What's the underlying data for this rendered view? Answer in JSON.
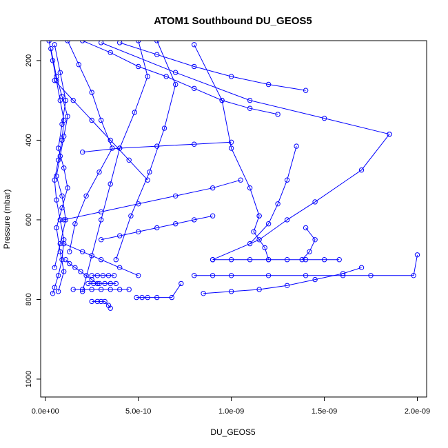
{
  "chart_data": {
    "type": "line",
    "title": "ATOM1 Southbound DU_GEOS5",
    "xlabel": "DU_GEOS5",
    "ylabel": "Pressure (mbar)",
    "xlim": [
      -2.5e-11,
      2.05e-09
    ],
    "ylim": [
      1045,
      150
    ],
    "y_reversed": true,
    "grid": false,
    "legend": "none",
    "x_ticks": [
      0,
      5e-10,
      1e-09,
      1.5e-09,
      2e-09
    ],
    "x_tick_labels": [
      "0.0e+00",
      "5.0e-10",
      "1.0e-09",
      "1.5e-09",
      "2.0e-09"
    ],
    "y_ticks": [
      200,
      400,
      600,
      800,
      1000
    ],
    "y_tick_labels": [
      "200",
      "400",
      "600",
      "800",
      "1000"
    ],
    "color": "#0000ff",
    "marker": "open-circle",
    "series": [
      {
        "values_x": [
          2e-11,
          4e-11,
          6e-11,
          8e-11,
          1e-10,
          9e-11,
          7e-11,
          5e-11,
          6e-11,
          8e-11,
          1e-10,
          9e-11,
          7e-11,
          5e-11,
          4e-11
        ],
        "values_y": [
          150,
          200,
          250,
          300,
          350,
          400,
          450,
          500,
          550,
          600,
          650,
          700,
          740,
          770,
          785
        ]
      },
      {
        "values_x": [
          5e-11,
          8e-11,
          1.1e-10,
          9e-11,
          7e-11,
          1e-10,
          1.2e-10,
          9e-11,
          6e-11,
          8e-11,
          1e-10,
          7e-11
        ],
        "values_y": [
          160,
          230,
          300,
          360,
          420,
          470,
          520,
          570,
          620,
          680,
          730,
          780
        ]
      },
      {
        "values_x": [
          3e-11,
          6e-11,
          9e-11,
          1.2e-10,
          1e-10,
          8e-11,
          6e-11,
          9e-11,
          1.1e-10,
          8e-11,
          5e-11
        ],
        "values_y": [
          170,
          240,
          290,
          340,
          390,
          440,
          490,
          540,
          600,
          660,
          720
        ]
      },
      {
        "values_x": [
          1.2e-10,
          1.8e-10,
          2.5e-10,
          3e-10,
          3.6e-10,
          2.9e-10,
          2.2e-10,
          1.6e-10,
          1.3e-10
        ],
        "values_y": [
          150,
          210,
          280,
          350,
          420,
          480,
          540,
          610,
          680
        ]
      },
      {
        "values_x": [
          2e-10,
          3.5e-10,
          5e-10,
          6.5e-10,
          8e-10,
          9.5e-10,
          1.1e-09,
          1.25e-09
        ],
        "values_y": [
          150,
          180,
          215,
          240,
          270,
          300,
          320,
          335
        ]
      },
      {
        "values_x": [
          4e-10,
          6e-10,
          8e-10,
          1e-09,
          1.2e-09,
          1.4e-09
        ],
        "values_y": [
          155,
          185,
          215,
          240,
          260,
          275
        ]
      },
      {
        "values_x": [
          3e-10,
          7e-10,
          1.1e-09,
          1.5e-09,
          1.85e-09
        ],
        "values_y": [
          155,
          230,
          300,
          345,
          385
        ]
      },
      {
        "values_x": [
          1.85e-09,
          1.7e-09,
          1.45e-09,
          1.3e-09,
          1.15e-09,
          9e-10
        ],
        "values_y": [
          385,
          475,
          555,
          600,
          650,
          700
        ]
      },
      {
        "values_x": [
          9e-10,
          1e-09,
          1.1e-09,
          1.2e-09,
          1.3e-09,
          1.4e-09,
          1.5e-09,
          1.58e-09
        ],
        "values_y": [
          700,
          700,
          700,
          700,
          700,
          700,
          700,
          700
        ]
      },
      {
        "values_x": [
          8e-10,
          9e-10,
          1e-09,
          1.2e-09,
          1.4e-09,
          1.6e-09,
          1.75e-09,
          1.98e-09,
          2e-09
        ],
        "values_y": [
          740,
          740,
          740,
          740,
          740,
          740,
          740,
          740,
          688
        ]
      },
      {
        "values_x": [
          8.5e-10,
          1e-09,
          1.15e-09,
          1.3e-09,
          1.45e-09,
          1.6e-09,
          1.7e-09
        ],
        "values_y": [
          785,
          780,
          775,
          765,
          750,
          735,
          720
        ]
      },
      {
        "values_x": [
          2.5e-10,
          2.8e-10,
          3e-10,
          3.2e-10,
          3.4e-10,
          3.5e-10
        ],
        "values_y": [
          805,
          805,
          805,
          805,
          815,
          822
        ]
      },
      {
        "values_x": [
          1.5e-10,
          2e-10,
          2.5e-10,
          3e-10,
          3.5e-10,
          4e-10,
          4.5e-10
        ],
        "values_y": [
          775,
          775,
          775,
          775,
          775,
          775,
          775
        ]
      },
      {
        "values_x": [
          2.5e-10,
          2.8e-10,
          3.1e-10,
          3.4e-10,
          3.7e-10
        ],
        "values_y": [
          740,
          740,
          740,
          740,
          740
        ]
      },
      {
        "values_x": [
          2.3e-10,
          2.6e-10,
          2.9e-10,
          3.2e-10,
          3.5e-10,
          3.8e-10
        ],
        "values_y": [
          760,
          760,
          760,
          760,
          760,
          760
        ]
      },
      {
        "values_x": [
          4.9e-10,
          5.2e-10,
          5.5e-10,
          6e-10,
          6.8e-10,
          7.3e-10
        ],
        "values_y": [
          795,
          795,
          795,
          795,
          795,
          760
        ]
      },
      {
        "values_x": [
          1.1e-10,
          1.3e-10,
          1.6e-10,
          1.9e-10,
          2.2e-10,
          2.5e-10,
          2.8e-10
        ],
        "values_y": [
          700,
          710,
          720,
          730,
          740,
          750,
          760
        ]
      },
      {
        "values_x": [
          5e-10,
          5.5e-10,
          4.8e-10,
          4e-10,
          3.5e-10,
          3e-10,
          2.5e-10,
          2e-10
        ],
        "values_y": [
          150,
          240,
          330,
          420,
          510,
          600,
          690,
          780
        ]
      },
      {
        "values_x": [
          6e-10,
          7e-10,
          6.4e-10,
          5.6e-10,
          4.6e-10,
          3.8e-10
        ],
        "values_y": [
          150,
          260,
          370,
          480,
          590,
          700
        ]
      },
      {
        "values_x": [
          8e-10,
          9.5e-10,
          1e-09,
          1.1e-09,
          1.15e-09
        ],
        "values_y": [
          160,
          300,
          420,
          520,
          590
        ]
      },
      {
        "values_x": [
          1.15e-09,
          1.12e-09,
          1.18e-09,
          1.2e-09
        ],
        "values_y": [
          590,
          630,
          670,
          700
        ]
      },
      {
        "values_x": [
          1.35e-09,
          1.3e-09,
          1.25e-09,
          1.2e-09,
          1.1e-09
        ],
        "values_y": [
          415,
          500,
          560,
          610,
          660
        ]
      },
      {
        "values_x": [
          1e-10,
          3e-10,
          5e-10,
          7e-10,
          9e-10,
          1.05e-09
        ],
        "values_y": [
          600,
          580,
          560,
          540,
          520,
          500
        ]
      },
      {
        "values_x": [
          2e-10,
          4e-10,
          6e-10,
          8e-10,
          1e-09
        ],
        "values_y": [
          430,
          420,
          415,
          410,
          405
        ]
      },
      {
        "values_x": [
          3e-10,
          4e-10,
          5e-10,
          6e-10,
          7e-10,
          8e-10,
          9e-10
        ],
        "values_y": [
          650,
          640,
          630,
          620,
          610,
          600,
          590
        ]
      },
      {
        "values_x": [
          1.4e-09,
          1.45e-09,
          1.42e-09,
          1.38e-09
        ],
        "values_y": [
          620,
          650,
          680,
          700
        ]
      },
      {
        "values_x": [
          5e-11,
          1.5e-10,
          2.5e-10,
          3.5e-10,
          4.5e-10,
          5.5e-10
        ],
        "values_y": [
          250,
          300,
          350,
          400,
          450,
          500
        ]
      },
      {
        "values_x": [
          1e-10,
          2e-10,
          3e-10,
          4e-10,
          5e-10
        ],
        "values_y": [
          660,
          680,
          700,
          720,
          740
        ]
      }
    ]
  }
}
